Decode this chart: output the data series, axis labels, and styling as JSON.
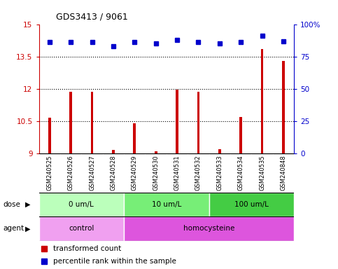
{
  "title": "GDS3413 / 9061",
  "samples": [
    "GSM240525",
    "GSM240526",
    "GSM240527",
    "GSM240528",
    "GSM240529",
    "GSM240530",
    "GSM240531",
    "GSM240532",
    "GSM240533",
    "GSM240534",
    "GSM240535",
    "GSM240848"
  ],
  "red_values": [
    10.65,
    11.85,
    11.85,
    9.15,
    10.4,
    9.1,
    11.95,
    11.85,
    9.2,
    10.7,
    13.85,
    13.3
  ],
  "blue_values": [
    86,
    86,
    86,
    83,
    86,
    85,
    88,
    86,
    85,
    86,
    91,
    87
  ],
  "ylim_left": [
    9,
    15
  ],
  "ylim_right": [
    0,
    100
  ],
  "yticks_left": [
    9,
    10.5,
    12,
    13.5,
    15
  ],
  "yticks_right": [
    0,
    25,
    50,
    75,
    100
  ],
  "ytick_labels_left": [
    "9",
    "10.5",
    "12",
    "13.5",
    "15"
  ],
  "ytick_labels_right": [
    "0",
    "25",
    "50",
    "75",
    "100%"
  ],
  "hlines": [
    10.5,
    12,
    13.5
  ],
  "dose_groups": [
    {
      "label": "0 um/L",
      "start": 0,
      "end": 4,
      "color": "#bbffbb"
    },
    {
      "label": "10 um/L",
      "start": 4,
      "end": 8,
      "color": "#77ee77"
    },
    {
      "label": "100 um/L",
      "start": 8,
      "end": 12,
      "color": "#44cc44"
    }
  ],
  "agent_groups": [
    {
      "label": "control",
      "start": 0,
      "end": 4,
      "color": "#f0a0f0"
    },
    {
      "label": "homocysteine",
      "start": 4,
      "end": 12,
      "color": "#dd55dd"
    }
  ],
  "red_color": "#cc0000",
  "blue_color": "#0000cc",
  "bar_width": 0.12,
  "plot_bg": "#ffffff",
  "label_bg": "#cccccc",
  "legend_red": "transformed count",
  "legend_blue": "percentile rank within the sample"
}
